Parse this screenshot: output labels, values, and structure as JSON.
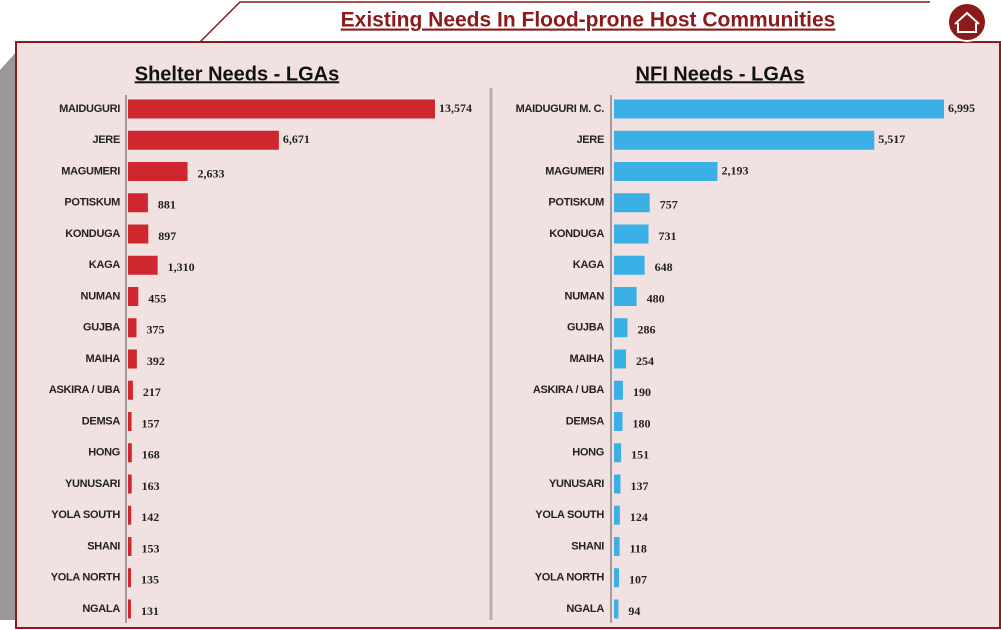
{
  "title": "Existing  Needs In Flood-prone Host Communities",
  "chart_data": [
    {
      "type": "bar",
      "orientation": "horizontal",
      "title": "Shelter Needs - LGAs",
      "color": "#d0262d",
      "categories": [
        "MAIDUGURI",
        "JERE",
        "MAGUMERI",
        "POTISKUM",
        "KONDUGA",
        "KAGA",
        "NUMAN",
        "GUJBA",
        "MAIHA",
        "ASKIRA / UBA",
        "DEMSA",
        "HONG",
        "YUNUSARI",
        "YOLA SOUTH",
        "SHANI",
        "YOLA NORTH",
        "NGALA"
      ],
      "values": [
        13574,
        6671,
        2633,
        881,
        897,
        1310,
        455,
        375,
        392,
        217,
        157,
        168,
        163,
        142,
        153,
        135,
        131
      ],
      "value_labels": [
        "13,574",
        "6,671",
        "2,633",
        "881",
        "897",
        "1,310",
        "455",
        "375",
        "392",
        "217",
        "157",
        "168",
        "163",
        "142",
        "153",
        "135",
        "131"
      ]
    },
    {
      "type": "bar",
      "orientation": "horizontal",
      "title": "NFI Needs - LGAs",
      "color": "#3bb0e6",
      "categories": [
        "MAIDUGURI M. C.",
        "JERE",
        "MAGUMERI",
        "POTISKUM",
        "KONDUGA",
        "KAGA",
        "NUMAN",
        "GUJBA",
        "MAIHA",
        "ASKIRA / UBA",
        "DEMSA",
        "HONG",
        "YUNUSARI",
        "YOLA SOUTH",
        "SHANI",
        "YOLA NORTH",
        "NGALA"
      ],
      "values": [
        6995,
        5517,
        2193,
        757,
        731,
        648,
        480,
        286,
        254,
        190,
        180,
        151,
        137,
        124,
        118,
        107,
        94
      ],
      "value_labels": [
        "6,995",
        "5,517",
        "2,193",
        "757",
        "731",
        "648",
        "480",
        "286",
        "254",
        "190",
        "180",
        "151",
        "137",
        "124",
        "118",
        "107",
        "94"
      ]
    }
  ]
}
